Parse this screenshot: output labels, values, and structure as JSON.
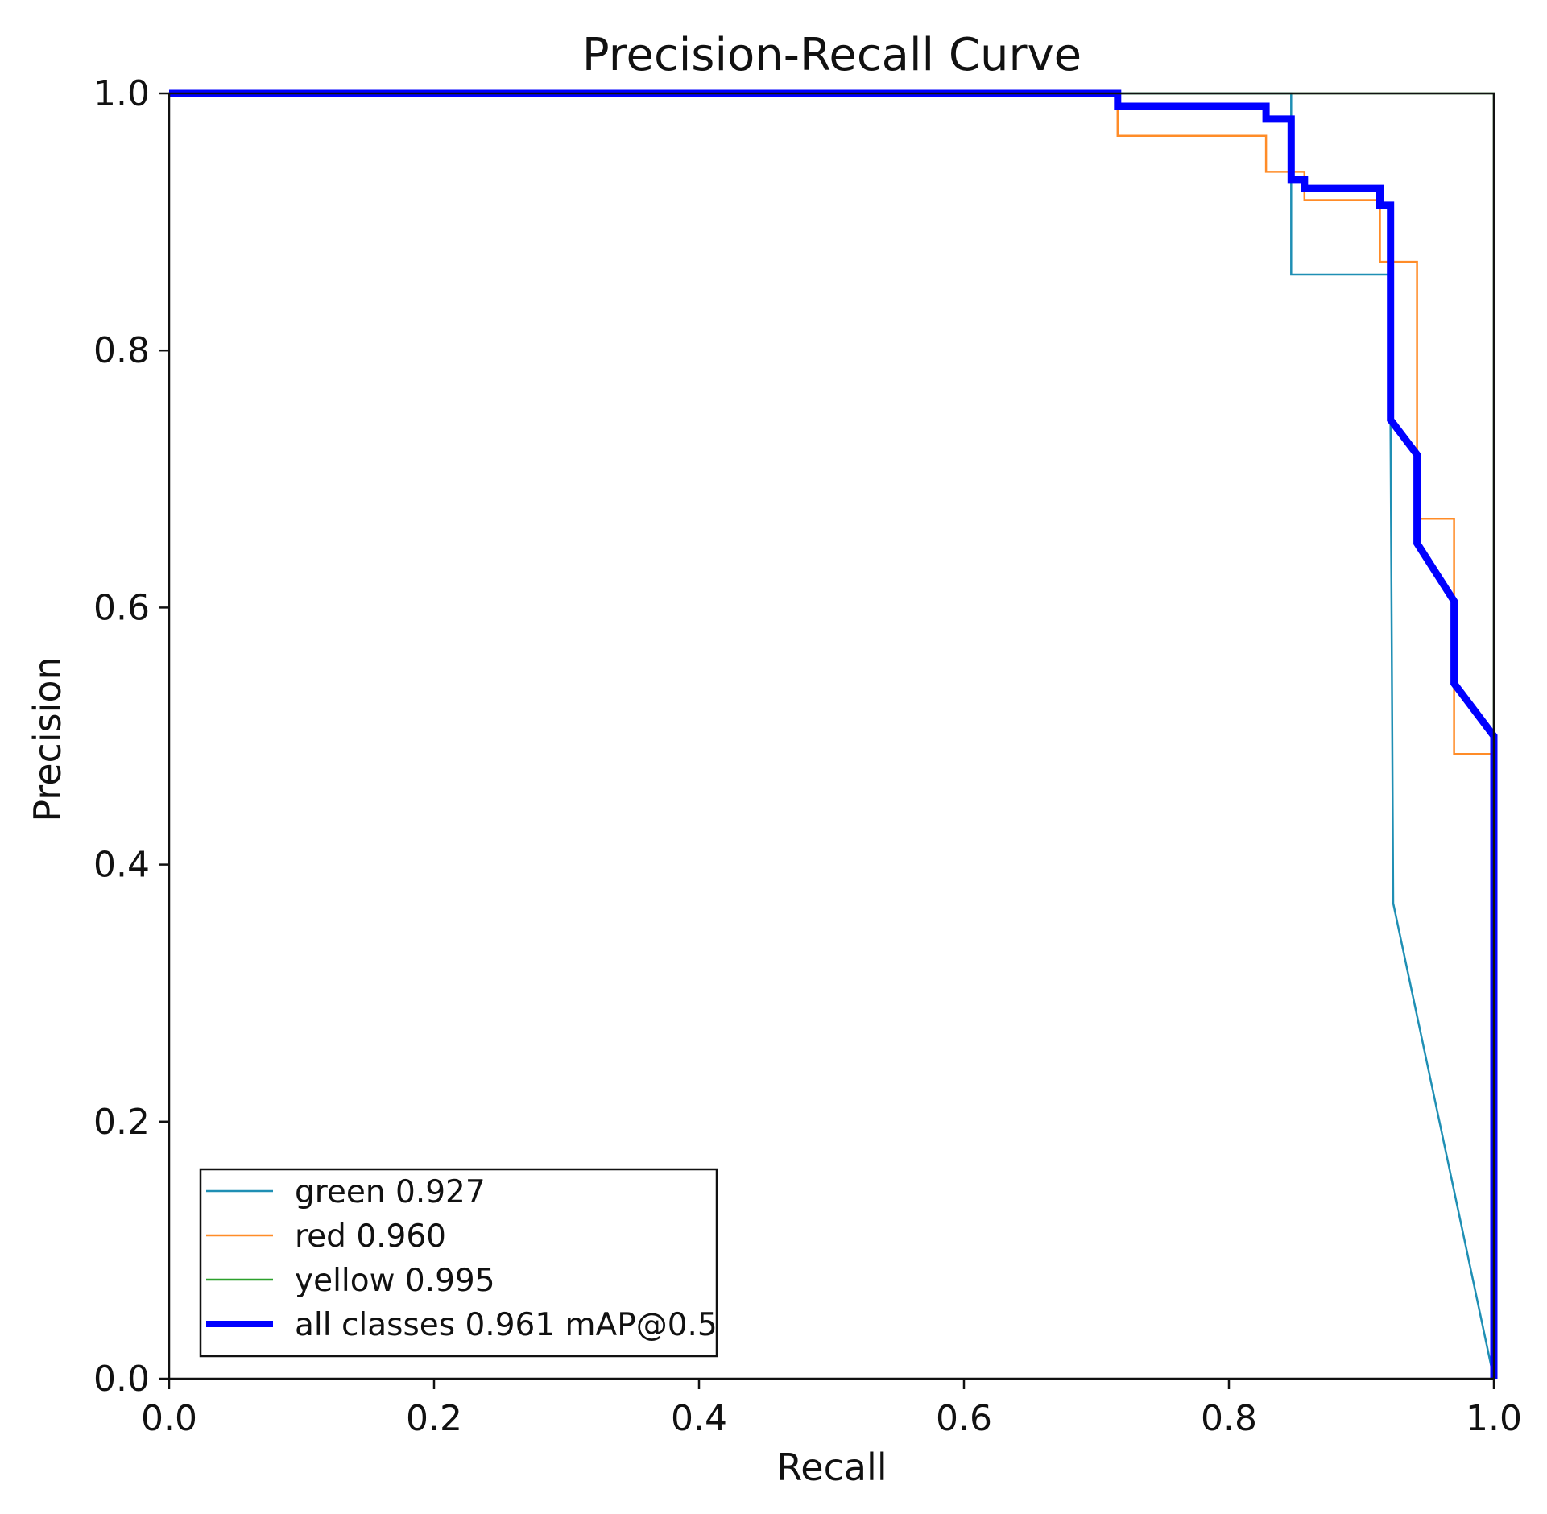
{
  "chart_data": {
    "type": "line",
    "title": "Precision-Recall Curve",
    "xlabel": "Recall",
    "ylabel": "Precision",
    "xlim": [
      0,
      1
    ],
    "ylim": [
      0,
      1
    ],
    "xticks": [
      "0.0",
      "0.2",
      "0.4",
      "0.6",
      "0.8",
      "1.0"
    ],
    "yticks": [
      "0.0",
      "0.2",
      "0.4",
      "0.6",
      "0.8",
      "1.0"
    ],
    "grid": false,
    "legend_position": "lower-left",
    "series": [
      {
        "name": "green 0.927",
        "color": "#1f8fb4",
        "width": "thin",
        "points": [
          [
            0.0,
            1.0
          ],
          [
            0.847,
            1.0
          ],
          [
            0.847,
            0.859
          ],
          [
            0.922,
            0.859
          ],
          [
            0.922,
            0.74
          ],
          [
            0.924,
            0.37
          ],
          [
            1.0,
            0.0
          ]
        ]
      },
      {
        "name": "red 0.960",
        "color": "#ff8c28",
        "width": "thin",
        "points": [
          [
            0.0,
            1.0
          ],
          [
            0.716,
            1.0
          ],
          [
            0.716,
            0.967
          ],
          [
            0.828,
            0.967
          ],
          [
            0.828,
            0.939
          ],
          [
            0.857,
            0.939
          ],
          [
            0.857,
            0.917
          ],
          [
            0.914,
            0.917
          ],
          [
            0.914,
            0.869
          ],
          [
            0.942,
            0.869
          ],
          [
            0.942,
            0.669
          ],
          [
            0.97,
            0.669
          ],
          [
            0.97,
            0.486
          ],
          [
            1.0,
            0.486
          ],
          [
            1.0,
            0.0
          ]
        ]
      },
      {
        "name": "yellow 0.995",
        "color": "#2ca02c",
        "width": "thin",
        "points": [
          [
            0.0,
            1.0
          ],
          [
            1.0,
            1.0
          ],
          [
            1.0,
            0.0
          ]
        ]
      },
      {
        "name": "all classes 0.961 mAP@0.5",
        "color": "#0000ff",
        "width": "thick",
        "points": [
          [
            0.0,
            1.0
          ],
          [
            0.716,
            1.0
          ],
          [
            0.716,
            0.99
          ],
          [
            0.828,
            0.99
          ],
          [
            0.828,
            0.98
          ],
          [
            0.847,
            0.98
          ],
          [
            0.847,
            0.933
          ],
          [
            0.857,
            0.933
          ],
          [
            0.857,
            0.926
          ],
          [
            0.914,
            0.926
          ],
          [
            0.914,
            0.913
          ],
          [
            0.922,
            0.913
          ],
          [
            0.922,
            0.746
          ],
          [
            0.942,
            0.719
          ],
          [
            0.942,
            0.65
          ],
          [
            0.97,
            0.605
          ],
          [
            0.97,
            0.541
          ],
          [
            1.0,
            0.5
          ],
          [
            1.0,
            0.0
          ]
        ]
      }
    ]
  }
}
